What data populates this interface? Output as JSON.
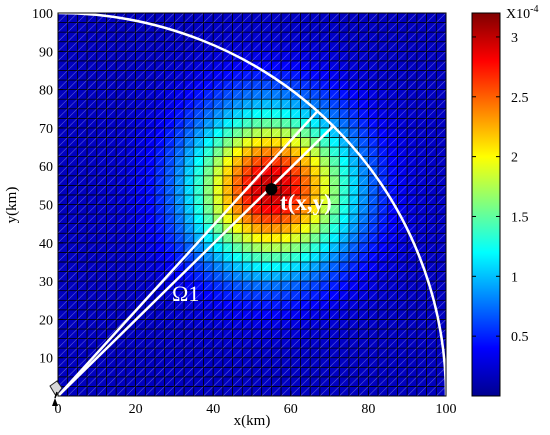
{
  "chart_data": {
    "type": "heatmap",
    "title": "",
    "xlabel": "x(km)",
    "ylabel": "y(km)",
    "xlim": [
      0,
      100
    ],
    "ylim": [
      0,
      100
    ],
    "grid_cells": 40,
    "xticks": [
      "0",
      "20",
      "40",
      "60",
      "80",
      "100"
    ],
    "yticks": [
      "10",
      "20",
      "30",
      "40",
      "50",
      "60",
      "70",
      "80",
      "90",
      "100"
    ],
    "intensity": {
      "model": "gaussian",
      "peak_value": 0.0003,
      "center_x": 55,
      "center_y": 54,
      "sigma_km": 14,
      "background": 2e-05
    },
    "colorbar": {
      "multiplier": "X10",
      "exponent": "-4",
      "min": 0,
      "max": 3.2,
      "tick_labels": [
        "0.5",
        "1",
        "1.5",
        "2",
        "2.5",
        "3"
      ],
      "tick_values": [
        0.5,
        1,
        1.5,
        2,
        2.5,
        3
      ],
      "colormap": "jet"
    },
    "arc": {
      "radius_km": 100,
      "center": [
        0,
        0
      ]
    },
    "rays": [
      {
        "from": [
          0,
          0
        ],
        "to": [
          67,
          74.5
        ]
      },
      {
        "from": [
          0,
          0
        ],
        "to": [
          71,
          70.5
        ]
      }
    ],
    "target_point": {
      "x": 55,
      "y": 54
    },
    "annotations": {
      "target_label": "t(x,y)",
      "region_label": "Ω1"
    },
    "origin_marker": {
      "x": 0,
      "y": 0
    }
  }
}
